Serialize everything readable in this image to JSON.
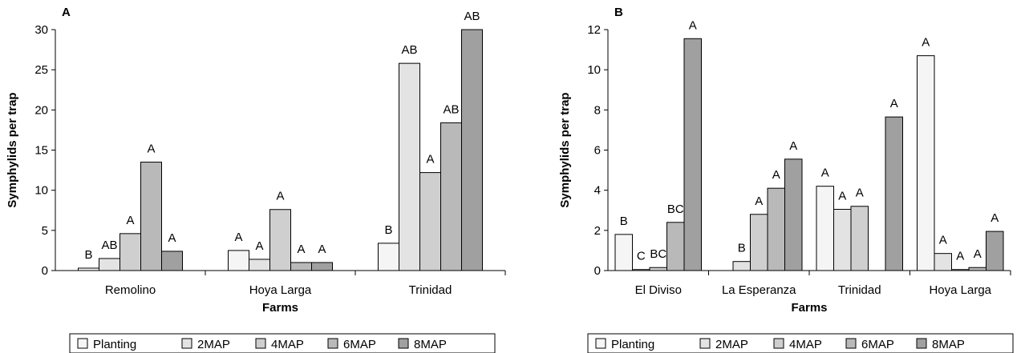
{
  "chart_data": [
    {
      "type": "bar",
      "panel_label": "A",
      "xlabel": "Farms",
      "ylabel": "Symphylids per trap",
      "ylim": [
        0,
        30
      ],
      "yticks": [
        0,
        5,
        10,
        15,
        20,
        25,
        30
      ],
      "categories": [
        "Remolino",
        "Hoya Larga",
        "Trinidad"
      ],
      "series": [
        {
          "name": "Planting",
          "color": "#f5f5f5",
          "values": [
            0.3,
            2.5,
            3.4
          ],
          "labels": [
            "B",
            "A",
            "B"
          ]
        },
        {
          "name": "2MAP",
          "color": "#e3e3e3",
          "values": [
            1.5,
            1.4,
            25.8
          ],
          "labels": [
            "AB",
            "A",
            "AB"
          ]
        },
        {
          "name": "4MAP",
          "color": "#cfcfcf",
          "values": [
            4.6,
            7.6,
            12.2
          ],
          "labels": [
            "A",
            "A",
            "A"
          ]
        },
        {
          "name": "6MAP",
          "color": "#b9b9b9",
          "values": [
            13.5,
            1.0,
            18.4
          ],
          "labels": [
            "A",
            "A",
            "AB"
          ]
        },
        {
          "name": "8MAP",
          "color": "#a0a0a0",
          "values": [
            2.4,
            1.0,
            30.0
          ],
          "labels": [
            "A",
            "A",
            "AB"
          ]
        }
      ],
      "legend": "bottom"
    },
    {
      "type": "bar",
      "panel_label": "B",
      "xlabel": "Farms",
      "ylabel": "Symphylids per trap",
      "ylim": [
        0,
        12
      ],
      "yticks": [
        0,
        2,
        4,
        6,
        8,
        10,
        12
      ],
      "categories": [
        "El Diviso",
        "La Esperanza",
        "Trinidad",
        "Hoya Larga"
      ],
      "series": [
        {
          "name": "Planting",
          "color": "#f5f5f5",
          "values": [
            1.8,
            0,
            4.2,
            10.7
          ],
          "labels": [
            "B",
            "",
            "A",
            "A"
          ]
        },
        {
          "name": "2MAP",
          "color": "#e3e3e3",
          "values": [
            0.05,
            0.45,
            3.05,
            0.85
          ],
          "labels": [
            "C",
            "B",
            "A",
            "A"
          ]
        },
        {
          "name": "4MAP",
          "color": "#cfcfcf",
          "values": [
            0.15,
            2.8,
            3.2,
            0.05
          ],
          "labels": [
            "BC",
            "A",
            "A",
            "A"
          ]
        },
        {
          "name": "6MAP",
          "color": "#b9b9b9",
          "values": [
            2.4,
            4.1,
            0,
            0.15
          ],
          "labels": [
            "BC",
            "A",
            "",
            "A"
          ]
        },
        {
          "name": "8MAP",
          "color": "#a0a0a0",
          "values": [
            11.55,
            5.55,
            7.65,
            1.95
          ],
          "labels": [
            "A",
            "A",
            "A",
            "A"
          ]
        }
      ],
      "legend": "bottom"
    }
  ]
}
